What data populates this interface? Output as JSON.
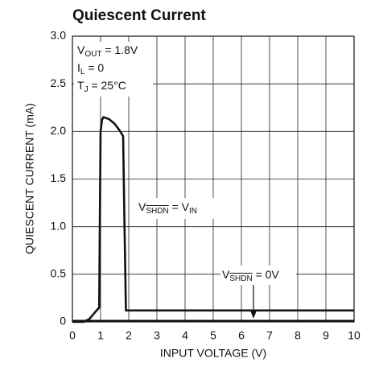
{
  "chart_data": {
    "type": "line",
    "title": "Quiescent Current",
    "xlabel": "INPUT VOLTAGE (V)",
    "ylabel": "QUIESCENT CURRENT (mA)",
    "xlim": [
      0,
      10
    ],
    "xticks": [
      0,
      1,
      2,
      3,
      4,
      5,
      6,
      7,
      8,
      9,
      10
    ],
    "ylim": [
      0,
      3
    ],
    "yticks": [
      0,
      0.5,
      {
        "value": 1,
        "label": "1.0"
      },
      1.5,
      {
        "value": 2,
        "label": "2.0"
      },
      2.5,
      {
        "value": 3,
        "label": "3.0"
      }
    ],
    "grid": true,
    "series": [
      {
        "color": "#111111",
        "x": [
          0,
          0.4,
          0.6,
          0.8,
          0.95,
          1.0,
          1.05,
          1.1,
          1.3,
          1.5,
          1.7,
          1.8,
          1.85,
          1.9,
          2.0,
          10
        ],
        "values": [
          0,
          0,
          0.03,
          0.1,
          0.15,
          2.0,
          2.12,
          2.15,
          2.13,
          2.08,
          2.0,
          1.95,
          1.0,
          0.12,
          0.12,
          0.12
        ]
      },
      {
        "color": "#111111",
        "x": [
          0,
          10
        ],
        "values": [
          0.01,
          0.01
        ]
      }
    ],
    "conditions": [
      [
        "V",
        "OUT",
        " = 1.8V"
      ],
      [
        "I",
        "L",
        " = 0"
      ],
      [
        "T",
        "J",
        " = 25°C"
      ]
    ],
    "annotations": [
      [
        "V",
        "SHDN",
        " = V",
        "IN"
      ],
      [
        "V",
        "SHDN",
        " = 0V"
      ]
    ]
  }
}
